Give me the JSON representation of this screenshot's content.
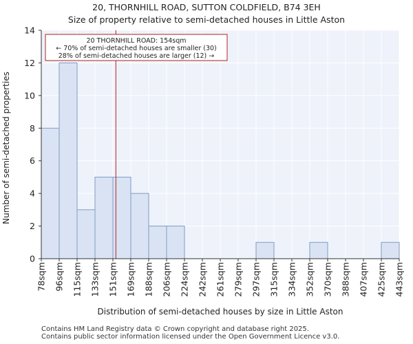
{
  "chart_data": {
    "type": "histogram",
    "title": "20, THORNHILL ROAD, SUTTON COLDFIELD, B74 3EH",
    "subtitle": "Size of property relative to semi-detached houses in Little Aston",
    "xlabel": "Distribution of semi-detached houses by size in Little Aston",
    "ylabel": "Number of semi-detached properties",
    "categories": [
      "78sqm",
      "96sqm",
      "115sqm",
      "133sqm",
      "151sqm",
      "169sqm",
      "188sqm",
      "206sqm",
      "224sqm",
      "242sqm",
      "261sqm",
      "279sqm",
      "297sqm",
      "315sqm",
      "334sqm",
      "352sqm",
      "370sqm",
      "388sqm",
      "407sqm",
      "425sqm",
      "443sqm"
    ],
    "values": [
      8,
      12,
      3,
      5,
      5,
      4,
      2,
      2,
      0,
      0,
      0,
      0,
      1,
      0,
      0,
      1,
      0,
      0,
      0,
      1
    ],
    "ylim": [
      0,
      14
    ],
    "yticks": [
      0,
      2,
      4,
      6,
      8,
      10,
      12,
      14
    ],
    "grid": true,
    "bar_color": "#dae3f3",
    "bar_edge_color": "#7e9cc6",
    "marker": {
      "value_sqm": 154,
      "color": "#b22222",
      "annotation": [
        "20 THORNHILL ROAD: 154sqm",
        "← 70% of semi-detached houses are smaller (30)",
        "28% of semi-detached houses are larger (12) →"
      ]
    }
  },
  "footer": {
    "line1": "Contains HM Land Registry data © Crown copyright and database right 2025.",
    "line2": "Contains public sector information licensed under the Open Government Licence v3.0."
  }
}
